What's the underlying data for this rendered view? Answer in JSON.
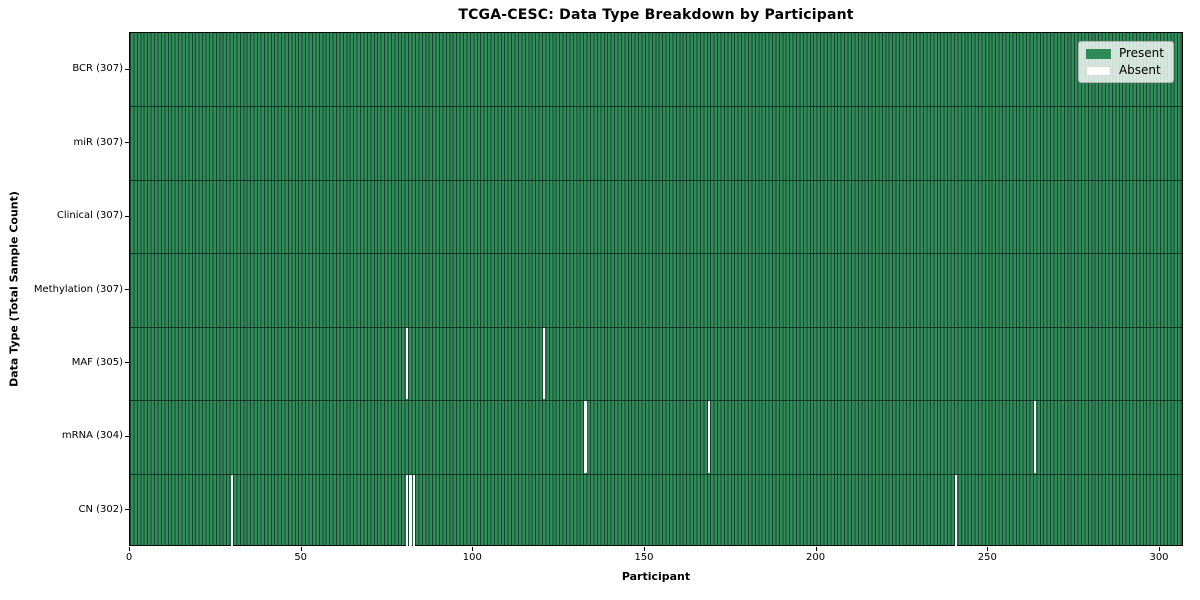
{
  "title": "TCGA-CESC: Data Type Breakdown by Participant",
  "colors": {
    "present": "#2e8b57",
    "absent": "#ffffff",
    "cell_edge": "rgba(0,0,0,0.52)",
    "legend_border": "#b3b3b3"
  },
  "legend": {
    "present_label": "Present",
    "absent_label": "Absent"
  },
  "chart_data": {
    "type": "heatmap",
    "title": "TCGA-CESC: Data Type Breakdown by Participant",
    "xlabel": "Participant",
    "ylabel": "Data Type (Total Sample Count)",
    "n_participants": 307,
    "xlim": [
      0,
      307
    ],
    "x_ticks": [
      0,
      50,
      100,
      150,
      200,
      250,
      300
    ],
    "grid": false,
    "legend_position": "upper right",
    "legend": [
      {
        "label": "Present",
        "color": "#2e8b57"
      },
      {
        "label": "Absent",
        "color": "#ffffff"
      }
    ],
    "rows": [
      {
        "label": "BCR (307)",
        "data_type": "BCR",
        "total_samples": 307,
        "absent_participants": []
      },
      {
        "label": "miR (307)",
        "data_type": "miR",
        "total_samples": 307,
        "absent_participants": []
      },
      {
        "label": "Clinical (307)",
        "data_type": "Clinical",
        "total_samples": 307,
        "absent_participants": []
      },
      {
        "label": "Methylation (307)",
        "data_type": "Methylation",
        "total_samples": 307,
        "absent_participants": []
      },
      {
        "label": "MAF (305)",
        "data_type": "MAF",
        "total_samples": 305,
        "absent_participants": [
          80,
          120
        ]
      },
      {
        "label": "mRNA (304)",
        "data_type": "mRNA",
        "total_samples": 304,
        "absent_participants": [
          132,
          168,
          263
        ]
      },
      {
        "label": "CN (302)",
        "data_type": "CN",
        "total_samples": 302,
        "absent_participants": [
          29,
          80,
          81,
          82,
          240
        ]
      }
    ]
  }
}
